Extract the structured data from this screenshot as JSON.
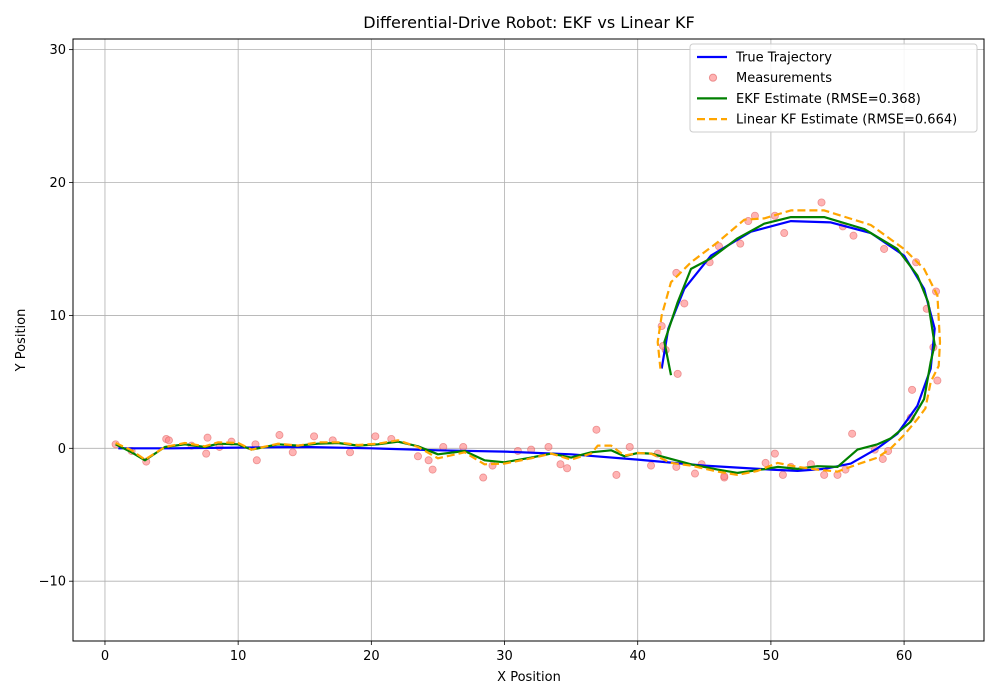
{
  "chart_data": {
    "type": "line",
    "title": "Differential-Drive Robot: EKF vs Linear KF",
    "xlabel": "X Position",
    "ylabel": "Y Position",
    "xlim": [
      -2.4,
      66.0
    ],
    "ylim": [
      -14.5,
      30.8
    ],
    "xticks": [
      0,
      10,
      20,
      30,
      40,
      50,
      60
    ],
    "yticks": [
      -10,
      0,
      10,
      20,
      30
    ],
    "xtick_labels": [
      "0",
      "10",
      "20",
      "30",
      "40",
      "50",
      "60"
    ],
    "ytick_labels": [
      "−10",
      "0",
      "10",
      "20",
      "30"
    ],
    "grid": true,
    "legend_position": "top-right",
    "series": [
      {
        "name": "True Trajectory",
        "kind": "line",
        "color": "#0000ff",
        "dash": "solid",
        "points": [
          [
            1,
            0
          ],
          [
            5,
            0
          ],
          [
            10,
            0.05
          ],
          [
            15,
            0.1
          ],
          [
            20,
            0
          ],
          [
            25,
            -0.15
          ],
          [
            30,
            -0.25
          ],
          [
            35,
            -0.45
          ],
          [
            40,
            -0.85
          ],
          [
            45,
            -1.3
          ],
          [
            50,
            -1.6
          ],
          [
            52,
            -1.7
          ],
          [
            54,
            -1.55
          ],
          [
            56,
            -1.15
          ],
          [
            58,
            0
          ],
          [
            59.5,
            1.1
          ],
          [
            61,
            3.2
          ],
          [
            62,
            6
          ],
          [
            62.3,
            9
          ],
          [
            61.5,
            12
          ],
          [
            60,
            14.5
          ],
          [
            57.5,
            16.2
          ],
          [
            54.5,
            17
          ],
          [
            51.5,
            17.1
          ],
          [
            48.5,
            16.3
          ],
          [
            45.5,
            14.5
          ],
          [
            43.5,
            12
          ],
          [
            42.3,
            9
          ],
          [
            41.8,
            6
          ]
        ]
      },
      {
        "name": "Measurements",
        "kind": "scatter",
        "color": "#ff8080",
        "points": [
          [
            0.8,
            0.3
          ],
          [
            2,
            -0.2
          ],
          [
            3.1,
            -1
          ],
          [
            4.6,
            0.7
          ],
          [
            4.8,
            0.6
          ],
          [
            6.5,
            0.2
          ],
          [
            7.6,
            -0.4
          ],
          [
            7.7,
            0.8
          ],
          [
            8.6,
            0.1
          ],
          [
            9.5,
            0.5
          ],
          [
            11.3,
            0.3
          ],
          [
            11.4,
            -0.9
          ],
          [
            13.1,
            1
          ],
          [
            14.1,
            -0.3
          ],
          [
            15.7,
            0.9
          ],
          [
            17.1,
            0.6
          ],
          [
            18.4,
            -0.3
          ],
          [
            20.3,
            0.9
          ],
          [
            21.5,
            0.7
          ],
          [
            23.5,
            -0.6
          ],
          [
            24.3,
            -0.9
          ],
          [
            24.6,
            -1.6
          ],
          [
            25.4,
            0.1
          ],
          [
            26.9,
            0.1
          ],
          [
            28.4,
            -2.2
          ],
          [
            29.1,
            -1.3
          ],
          [
            31,
            -0.2
          ],
          [
            32,
            -0.1
          ],
          [
            33.3,
            0.1
          ],
          [
            34.2,
            -1.2
          ],
          [
            34.7,
            -1.5
          ],
          [
            36.9,
            1.4
          ],
          [
            38.4,
            -2
          ],
          [
            39.4,
            0.1
          ],
          [
            41,
            -1.3
          ],
          [
            41.5,
            -0.4
          ],
          [
            42.9,
            -1.4
          ],
          [
            44.3,
            -1.9
          ],
          [
            44.8,
            -1.2
          ],
          [
            46.5,
            -2.2
          ],
          [
            46.5,
            -2.1
          ],
          [
            49.6,
            -1.1
          ],
          [
            50.3,
            -0.4
          ],
          [
            50.9,
            -2
          ],
          [
            51.5,
            -1.4
          ],
          [
            53,
            -1.2
          ],
          [
            54,
            -2
          ],
          [
            55,
            -2
          ],
          [
            55.6,
            -1.6
          ],
          [
            56.1,
            1.1
          ],
          [
            57.8,
            -0.1
          ],
          [
            58.4,
            -0.8
          ],
          [
            58.8,
            -0.2
          ],
          [
            60.5,
            2.3
          ],
          [
            60.6,
            4.4
          ],
          [
            61.7,
            10.5
          ],
          [
            62.2,
            7.6
          ],
          [
            62.4,
            11.8
          ],
          [
            62.5,
            5.1
          ],
          [
            60.9,
            14
          ],
          [
            58.5,
            15
          ],
          [
            56.2,
            16
          ],
          [
            55.4,
            16.7
          ],
          [
            53.8,
            18.5
          ],
          [
            51,
            16.2
          ],
          [
            50.3,
            17.5
          ],
          [
            48.3,
            17.1
          ],
          [
            48.8,
            17.5
          ],
          [
            47.7,
            15.4
          ],
          [
            46.1,
            15.2
          ],
          [
            45.4,
            14
          ],
          [
            43.5,
            10.9
          ],
          [
            42.9,
            13.2
          ],
          [
            43,
            5.6
          ],
          [
            42.1,
            7.4
          ],
          [
            41.8,
            9.2
          ],
          [
            41.9,
            7.7
          ]
        ]
      },
      {
        "name": "EKF Estimate (RMSE=0.368)",
        "kind": "line",
        "color": "#008000",
        "dash": "solid",
        "points": [
          [
            0.8,
            0.3
          ],
          [
            2,
            -0.3
          ],
          [
            3,
            -0.9
          ],
          [
            4.5,
            0.1
          ],
          [
            6,
            0.3
          ],
          [
            7.5,
            0.1
          ],
          [
            8.5,
            0.35
          ],
          [
            10,
            0.3
          ],
          [
            11,
            -0.1
          ],
          [
            13,
            0.3
          ],
          [
            14.5,
            0.2
          ],
          [
            16,
            0.35
          ],
          [
            17.5,
            0.4
          ],
          [
            19,
            0.2
          ],
          [
            20.5,
            0.3
          ],
          [
            22,
            0.5
          ],
          [
            23.5,
            0.15
          ],
          [
            25,
            -0.45
          ],
          [
            27,
            -0.2
          ],
          [
            28.5,
            -0.9
          ],
          [
            30,
            -1.05
          ],
          [
            32,
            -0.7
          ],
          [
            33.5,
            -0.4
          ],
          [
            35,
            -0.7
          ],
          [
            36.5,
            -0.3
          ],
          [
            38,
            -0.15
          ],
          [
            39,
            -0.6
          ],
          [
            40,
            -0.35
          ],
          [
            41,
            -0.4
          ],
          [
            42.5,
            -0.8
          ],
          [
            44,
            -1.2
          ],
          [
            46,
            -1.6
          ],
          [
            47.5,
            -1.85
          ],
          [
            49,
            -1.65
          ],
          [
            50.5,
            -1.4
          ],
          [
            52,
            -1.55
          ],
          [
            53.5,
            -1.35
          ],
          [
            55,
            -1.4
          ],
          [
            56.5,
            -0.1
          ],
          [
            58,
            0.3
          ],
          [
            59,
            0.75
          ],
          [
            60.5,
            2
          ],
          [
            61.5,
            3.7
          ],
          [
            62,
            6.5
          ],
          [
            62.3,
            7.8
          ],
          [
            61.8,
            11
          ],
          [
            61,
            13
          ],
          [
            59.5,
            15
          ],
          [
            57,
            16.5
          ],
          [
            54,
            17.4
          ],
          [
            51.5,
            17.4
          ],
          [
            49.5,
            16.9
          ],
          [
            47.5,
            15.8
          ],
          [
            45.5,
            14.3
          ],
          [
            44,
            13.5
          ],
          [
            43,
            11
          ],
          [
            42,
            8
          ],
          [
            42.5,
            5.5
          ]
        ]
      },
      {
        "name": "Linear KF Estimate (RMSE=0.664)",
        "kind": "line",
        "color": "#ffa500",
        "dash": "dashed",
        "points": [
          [
            0.8,
            0.4
          ],
          [
            2,
            -0.15
          ],
          [
            3,
            -0.85
          ],
          [
            4.5,
            0.1
          ],
          [
            6,
            0.4
          ],
          [
            7.5,
            0.15
          ],
          [
            8.5,
            0.45
          ],
          [
            10,
            0.4
          ],
          [
            11,
            -0.1
          ],
          [
            13,
            0.35
          ],
          [
            14.5,
            0.2
          ],
          [
            16,
            0.45
          ],
          [
            17.5,
            0.45
          ],
          [
            19,
            0.25
          ],
          [
            20.5,
            0.35
          ],
          [
            22,
            0.6
          ],
          [
            23.5,
            0.1
          ],
          [
            25,
            -0.75
          ],
          [
            27,
            -0.3
          ],
          [
            28.5,
            -1.2
          ],
          [
            30,
            -1.15
          ],
          [
            32,
            -0.75
          ],
          [
            33.5,
            -0.4
          ],
          [
            35,
            -0.85
          ],
          [
            36.5,
            -0.4
          ],
          [
            37,
            0.2
          ],
          [
            38,
            0.2
          ],
          [
            39,
            -0.55
          ],
          [
            40,
            -0.35
          ],
          [
            41,
            -0.4
          ],
          [
            42.5,
            -1.1
          ],
          [
            44,
            -1.3
          ],
          [
            46,
            -1.75
          ],
          [
            47.5,
            -2
          ],
          [
            49,
            -1.7
          ],
          [
            50.5,
            -1.1
          ],
          [
            52,
            -1.4
          ],
          [
            53.5,
            -1.6
          ],
          [
            55,
            -1.75
          ],
          [
            56.5,
            -1.2
          ],
          [
            58,
            -0.7
          ],
          [
            59,
            0
          ],
          [
            60,
            1
          ],
          [
            61,
            2.2
          ],
          [
            61.6,
            3
          ],
          [
            62,
            5
          ],
          [
            62.6,
            6.2
          ],
          [
            62.7,
            8
          ],
          [
            62.5,
            11.5
          ],
          [
            61.5,
            13.5
          ],
          [
            60,
            15
          ],
          [
            57.5,
            16.8
          ],
          [
            54,
            17.9
          ],
          [
            51.5,
            17.9
          ],
          [
            49.5,
            17.3
          ],
          [
            48,
            17.2
          ],
          [
            46,
            15.5
          ],
          [
            44,
            14
          ],
          [
            42.5,
            12.5
          ],
          [
            41.8,
            10
          ],
          [
            41.5,
            8
          ],
          [
            41.7,
            6
          ]
        ]
      }
    ]
  }
}
